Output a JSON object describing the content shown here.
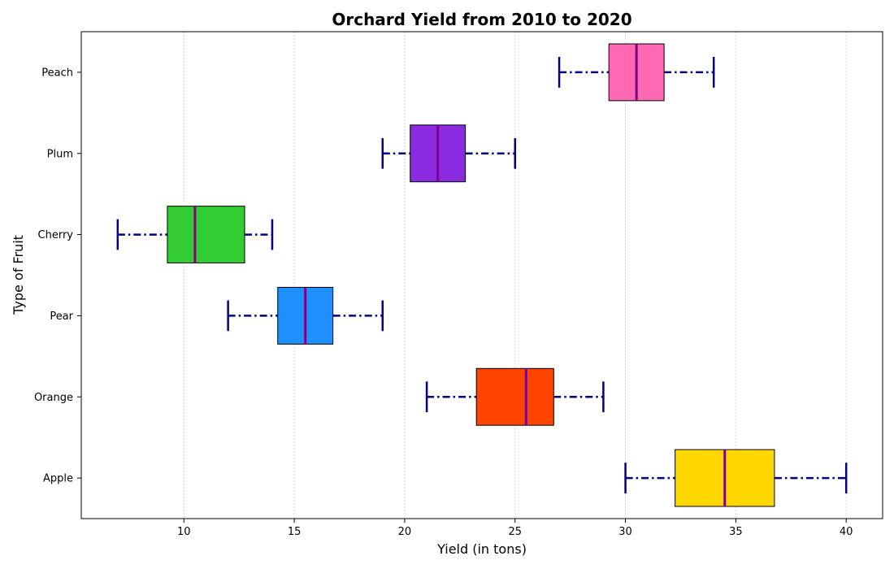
{
  "chart_data": {
    "type": "boxplot",
    "orientation": "horizontal",
    "title": "Orchard Yield from 2010 to 2020",
    "xlabel": "Yield (in tons)",
    "ylabel": "Type of Fruit",
    "xlim": [
      5.35,
      41.65
    ],
    "xticks": [
      10,
      15,
      20,
      25,
      30,
      35,
      40
    ],
    "grid": "x-dotted",
    "categories": [
      "Apple",
      "Orange",
      "Pear",
      "Cherry",
      "Plum",
      "Peach"
    ],
    "series": [
      {
        "category": "Apple",
        "min": 30,
        "q1": 32.25,
        "median": 34.5,
        "q3": 36.75,
        "max": 40,
        "color": "#FFD700"
      },
      {
        "category": "Orange",
        "min": 21,
        "q1": 23.25,
        "median": 25.5,
        "q3": 26.75,
        "max": 29,
        "color": "#FF4500"
      },
      {
        "category": "Pear",
        "min": 12,
        "q1": 14.25,
        "median": 15.5,
        "q3": 16.75,
        "max": 19,
        "color": "#1E90FF"
      },
      {
        "category": "Cherry",
        "min": 7,
        "q1": 9.25,
        "median": 10.5,
        "q3": 12.75,
        "max": 14,
        "color": "#32CD32"
      },
      {
        "category": "Plum",
        "min": 19,
        "q1": 20.25,
        "median": 21.5,
        "q3": 22.75,
        "max": 25,
        "color": "#8A2BE2"
      },
      {
        "category": "Peach",
        "min": 27,
        "q1": 29.25,
        "median": 30.5,
        "q3": 31.75,
        "max": 34,
        "color": "#FF69B4"
      }
    ],
    "median_color": "#800080",
    "whisker_color": "#000080"
  }
}
